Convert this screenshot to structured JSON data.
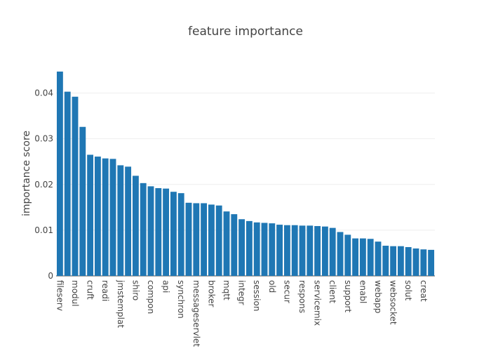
{
  "chart_data": {
    "type": "bar",
    "title": "feature importance",
    "xlabel": "",
    "ylabel": "importance score",
    "ylim": [
      0,
      0.045
    ],
    "yticks": [
      0,
      0.01,
      0.02,
      0.03,
      0.04
    ],
    "ytick_labels": [
      "0",
      "0.01",
      "0.02",
      "0.03",
      "0.04"
    ],
    "grid": true,
    "bar_color": "#1f77b4",
    "categories": [
      "fileserv",
      "",
      "modul",
      "",
      "cruft",
      "",
      "readi",
      "",
      "jmstemplat",
      "",
      "shiro",
      "",
      "compon",
      "",
      "api",
      "",
      "synchron",
      "",
      "messageservlet",
      "",
      "broker",
      "",
      "mqtt",
      "",
      "integr",
      "",
      "session",
      "",
      "old",
      "",
      "secur",
      "",
      "respons",
      "",
      "servicemix",
      "",
      "client",
      "",
      "support",
      "",
      "enabl",
      "",
      "webapp",
      "",
      "websocket",
      "",
      "solut",
      "",
      "creat",
      ""
    ],
    "values": [
      0.0447,
      0.0403,
      0.0392,
      0.0326,
      0.0265,
      0.0261,
      0.0257,
      0.0256,
      0.0242,
      0.0239,
      0.0219,
      0.0203,
      0.0196,
      0.0192,
      0.0191,
      0.0184,
      0.0181,
      0.016,
      0.0159,
      0.0159,
      0.0156,
      0.0154,
      0.0141,
      0.0135,
      0.0124,
      0.012,
      0.0117,
      0.0116,
      0.0115,
      0.0112,
      0.0111,
      0.0111,
      0.011,
      0.011,
      0.0109,
      0.0108,
      0.0105,
      0.0096,
      0.009,
      0.0082,
      0.0082,
      0.0081,
      0.0075,
      0.0066,
      0.0065,
      0.0065,
      0.0063,
      0.006,
      0.0058,
      0.0057
    ]
  }
}
